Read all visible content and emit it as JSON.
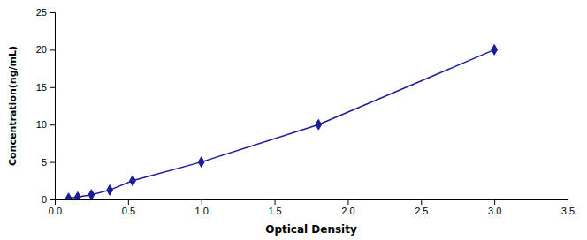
{
  "chart_data": {
    "type": "line",
    "x": [
      0.094,
      0.156,
      0.25,
      0.375,
      0.531,
      1.0,
      1.8,
      3.0
    ],
    "values": [
      0.156,
      0.312,
      0.625,
      1.25,
      2.5,
      5.0,
      10.0,
      20.0
    ],
    "color": "#1c1c9b",
    "marker": "diamond",
    "xlabel": "Optical Density",
    "ylabel": "Concentration(ng/mL)",
    "xlim": [
      0,
      3.5
    ],
    "ylim": [
      0,
      25
    ],
    "xticks": [
      {
        "value": 0,
        "label": "0.0"
      },
      0.5,
      {
        "value": 1.0,
        "label": "1.0"
      },
      1.5,
      {
        "value": 2.0,
        "label": "2.0"
      },
      2.5,
      {
        "value": 3.0,
        "label": "3.0"
      },
      3.5
    ],
    "yticks": [
      0,
      5,
      10,
      15,
      20,
      25
    ],
    "grid": false
  }
}
